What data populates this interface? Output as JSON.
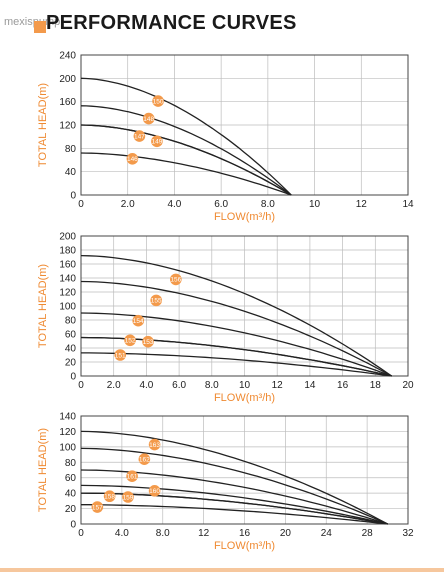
{
  "header": {
    "watermark": "mexispump",
    "title": "PERFORMANCE CURVES"
  },
  "colors": {
    "accent": "#f39a4b",
    "curve": "#222222",
    "grid": "#bdbdbd"
  },
  "chart_data": [
    {
      "type": "line",
      "xlabel": "FLOW(m³/h)",
      "ylabel": "TOTAL HEAD(m)",
      "xlim": [
        0,
        14
      ],
      "ylim": [
        0,
        240
      ],
      "xticks": [
        "0",
        "2.0",
        "4.0",
        "6.0",
        "8.0",
        "10",
        "12",
        "14"
      ],
      "yticks": [
        "0",
        "40",
        "80",
        "120",
        "160",
        "200",
        "240"
      ],
      "x_end": 9,
      "series": [
        {
          "label": "150",
          "shutoff": 200,
          "label_x": 3.3,
          "label_y": 161
        },
        {
          "label": "148",
          "shutoff": 153,
          "label_x": 2.9,
          "label_y": 131
        },
        {
          "label": "149",
          "shutoff": 120,
          "label_x": 3.25,
          "label_y": 92
        },
        {
          "label": "147",
          "shutoff": 120,
          "label_x": 2.5,
          "label_y": 101
        },
        {
          "label": "146",
          "shutoff": 72,
          "label_x": 2.2,
          "label_y": 62
        }
      ]
    },
    {
      "type": "line",
      "xlabel": "FLOW(m³/h)",
      "ylabel": "TOTAL HEAD(m)",
      "xlim": [
        0,
        20
      ],
      "ylim": [
        0,
        200
      ],
      "xticks": [
        "0",
        "2.0",
        "4.0",
        "6.0",
        "8.0",
        "10",
        "12",
        "14",
        "16",
        "18",
        "20"
      ],
      "yticks": [
        "0",
        "20",
        "40",
        "60",
        "80",
        "100",
        "120",
        "140",
        "160",
        "180",
        "200"
      ],
      "x_end": 19,
      "series": [
        {
          "label": "156",
          "shutoff": 172,
          "label_x": 5.8,
          "label_y": 138
        },
        {
          "label": "155",
          "shutoff": 135,
          "label_x": 4.6,
          "label_y": 108
        },
        {
          "label": "154",
          "shutoff": 90,
          "label_x": 3.5,
          "label_y": 79
        },
        {
          "label": "153",
          "shutoff": 55,
          "label_x": 4.1,
          "label_y": 49
        },
        {
          "label": "152",
          "shutoff": 55,
          "label_x": 3.0,
          "label_y": 51
        },
        {
          "label": "151",
          "shutoff": 33,
          "label_x": 2.4,
          "label_y": 30
        }
      ]
    },
    {
      "type": "line",
      "xlabel": "FLOW(m³/h)",
      "ylabel": "TOTAL HEAD(m)",
      "xlim": [
        0,
        32
      ],
      "ylim": [
        0,
        140
      ],
      "xticks": [
        "0",
        "4.0",
        "8.0",
        "12",
        "16",
        "20",
        "24",
        "28",
        "32"
      ],
      "yticks": [
        "0",
        "20",
        "40",
        "60",
        "80",
        "100",
        "120",
        "140"
      ],
      "x_end": 30,
      "series": [
        {
          "label": "163",
          "shutoff": 120,
          "label_x": 7.2,
          "label_y": 103
        },
        {
          "label": "162",
          "shutoff": 98,
          "label_x": 6.2,
          "label_y": 84
        },
        {
          "label": "161",
          "shutoff": 70,
          "label_x": 5.0,
          "label_y": 62
        },
        {
          "label": "160",
          "shutoff": 50,
          "label_x": 7.2,
          "label_y": 43
        },
        {
          "label": "159",
          "shutoff": 40,
          "label_x": 4.6,
          "label_y": 35
        },
        {
          "label": "158",
          "shutoff": 40,
          "label_x": 2.8,
          "label_y": 36
        },
        {
          "label": "157",
          "shutoff": 25,
          "label_x": 1.6,
          "label_y": 22
        }
      ]
    }
  ]
}
